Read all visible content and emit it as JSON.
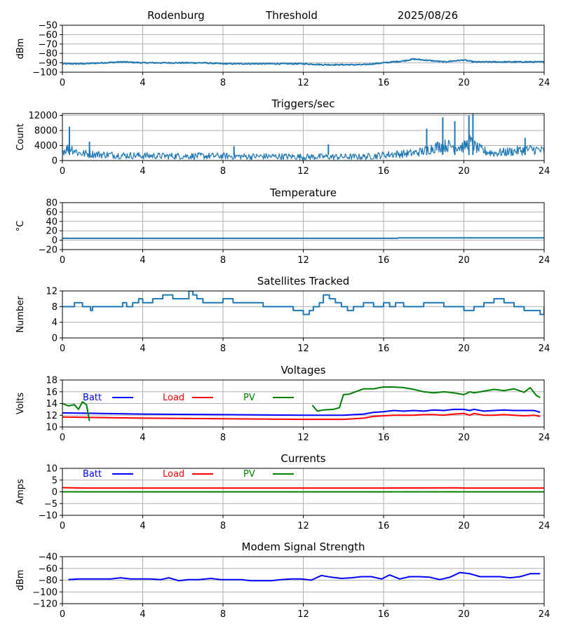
{
  "header": {
    "station": "Rodenburg",
    "mode": "Threshold",
    "date": "2025/08/26"
  },
  "colors": {
    "default": "#1f77b4",
    "batt": "#0000ff",
    "load": "#ff0000",
    "pv": "#008000",
    "grid": "#b0b0b0"
  },
  "chart_data": [
    {
      "id": "signal",
      "type": "line",
      "title": "",
      "ylabel": "dBm",
      "ylim": [
        -100,
        -50
      ],
      "yticks": [
        -100,
        -90,
        -80,
        -70,
        -60,
        -50
      ],
      "xlim": [
        0,
        24
      ],
      "xticks": [
        0,
        4,
        8,
        12,
        16,
        20,
        24
      ],
      "grid": true,
      "series": [
        {
          "color": "default",
          "noisy": true,
          "noise": 0.6,
          "x": [
            0,
            1,
            2,
            3,
            4,
            5,
            6,
            7,
            8,
            9,
            10,
            11,
            12,
            13,
            14,
            15,
            15.5,
            16,
            16.5,
            17,
            17.5,
            18,
            18.5,
            19,
            19.5,
            20,
            20.5,
            21,
            22,
            23,
            24
          ],
          "y": [
            -91,
            -91,
            -90,
            -89,
            -90,
            -90,
            -90,
            -90,
            -91,
            -91,
            -91,
            -91,
            -91,
            -92,
            -92,
            -92,
            -91,
            -90,
            -89,
            -88,
            -86,
            -87,
            -88,
            -89,
            -88,
            -87,
            -89,
            -89,
            -89,
            -89,
            -89
          ]
        }
      ]
    },
    {
      "id": "triggers",
      "type": "line",
      "title": "Triggers/sec",
      "ylabel": "Count",
      "ylim": [
        0,
        12500
      ],
      "yticks": [
        0,
        4000,
        8000,
        12000
      ],
      "xlim": [
        0,
        24
      ],
      "xticks": [
        0,
        4,
        8,
        12,
        16,
        20,
        24
      ],
      "grid": true,
      "series": [
        {
          "color": "default",
          "noisy": true,
          "noise": 900,
          "x": [
            0,
            0.4,
            0.8,
            1.2,
            2,
            3,
            4,
            5,
            6,
            7,
            8,
            9,
            10,
            11,
            12,
            13,
            14,
            15,
            15.5,
            16,
            16.5,
            17,
            17.5,
            18,
            18.5,
            19,
            19.5,
            20,
            20.3,
            20.6,
            21,
            21.5,
            22,
            22.5,
            23,
            23.5,
            24
          ],
          "y": [
            2500,
            3500,
            2000,
            1800,
            1600,
            1400,
            1300,
            1200,
            1200,
            1200,
            1200,
            1100,
            1100,
            1100,
            1000,
            1000,
            1000,
            1000,
            1200,
            1500,
            1700,
            1800,
            2000,
            2500,
            3500,
            4000,
            3800,
            3600,
            5000,
            3500,
            2500,
            2000,
            2200,
            2500,
            2800,
            3000,
            2500
          ]
        },
        {
          "color": "default",
          "noisy": false,
          "x": [
            0.3,
            0.35,
            0.4,
            1.3,
            1.35,
            1.4,
            8.5,
            8.55,
            8.6,
            13.2,
            13.25,
            13.3,
            18.1,
            18.15,
            18.2,
            18.9,
            18.95,
            19.0,
            19.5,
            19.55,
            19.6,
            20.2,
            20.25,
            20.3,
            20.4,
            20.45,
            20.5,
            23.0,
            23.05,
            23.1
          ],
          "y": [
            null,
            9000,
            null,
            null,
            5000,
            null,
            null,
            3800,
            null,
            null,
            4300,
            null,
            null,
            8500,
            null,
            null,
            11500,
            null,
            null,
            10500,
            null,
            null,
            12000,
            null,
            null,
            12400,
            null,
            null,
            6000,
            null
          ]
        }
      ]
    },
    {
      "id": "temperature",
      "type": "line",
      "title": "Temperature",
      "ylabel": "°C",
      "ylim": [
        -20,
        80
      ],
      "yticks": [
        -20,
        0,
        20,
        40,
        60,
        80
      ],
      "xlim": [
        0,
        24
      ],
      "xticks": [
        0,
        4,
        8,
        12,
        16,
        20,
        24
      ],
      "grid": true,
      "series": [
        {
          "color": "default",
          "noisy": false,
          "x": [
            0,
            16.7,
            16.75,
            24
          ],
          "y": [
            4,
            4,
            5,
            5
          ]
        }
      ]
    },
    {
      "id": "satellites",
      "type": "line",
      "title": "Satellites Tracked",
      "ylabel": "Number",
      "ylim": [
        0,
        12
      ],
      "yticks": [
        0,
        4,
        8,
        12
      ],
      "xlim": [
        0,
        24
      ],
      "xticks": [
        0,
        4,
        8,
        12,
        16,
        20,
        24
      ],
      "grid": true,
      "series": [
        {
          "color": "default",
          "noisy": false,
          "step": true,
          "x": [
            0,
            0.6,
            0.8,
            1,
            1.3,
            1.4,
            1.5,
            2.5,
            3,
            3.2,
            3.5,
            3.8,
            4,
            4.5,
            5,
            5.5,
            6,
            6.3,
            6.5,
            6.7,
            7,
            7.5,
            8,
            8.5,
            9,
            10,
            11,
            11.5,
            12,
            12.3,
            12.5,
            12.8,
            13,
            13.3,
            13.6,
            13.9,
            14.2,
            14.5,
            15,
            15.5,
            16,
            16.3,
            16.6,
            17,
            17.5,
            18,
            18.5,
            19,
            19.5,
            20,
            20.5,
            21,
            21.5,
            22,
            22.5,
            23,
            23.5,
            23.8,
            24
          ],
          "y": [
            8,
            9,
            9,
            8,
            8,
            7,
            8,
            8,
            9,
            8,
            9,
            10,
            9,
            10,
            11,
            10,
            10,
            12,
            11,
            10,
            9,
            9,
            10,
            9,
            9,
            8,
            8,
            7,
            6,
            7,
            8,
            9,
            11,
            10,
            9,
            8,
            7,
            8,
            9,
            8,
            9,
            8,
            9,
            8,
            8,
            9,
            9,
            8,
            8,
            7,
            8,
            9,
            10,
            9,
            8,
            7,
            7,
            6,
            8
          ]
        }
      ]
    },
    {
      "id": "voltages",
      "type": "line",
      "title": "Voltages",
      "ylabel": "Volts",
      "ylim": [
        10,
        18
      ],
      "yticks": [
        10,
        12,
        14,
        16,
        18
      ],
      "xlim": [
        0,
        24
      ],
      "xticks": [
        0,
        4,
        8,
        12,
        16,
        20,
        24
      ],
      "grid": true,
      "legend": [
        "Batt",
        "Load",
        "PV"
      ],
      "series": [
        {
          "name": "Batt",
          "color": "batt",
          "noisy": false,
          "x": [
            0,
            2,
            4,
            8,
            12,
            14,
            15,
            15.5,
            16,
            16.5,
            17,
            17.5,
            18,
            18.5,
            19,
            19.5,
            20,
            20.3,
            20.5,
            21,
            21.5,
            22,
            22.5,
            23,
            23.5,
            23.8
          ],
          "y": [
            12.4,
            12.3,
            12.2,
            12.1,
            12.0,
            12.0,
            12.2,
            12.5,
            12.6,
            12.8,
            12.7,
            12.8,
            12.7,
            12.9,
            12.8,
            13.0,
            13.0,
            12.8,
            13.0,
            12.7,
            12.8,
            12.9,
            12.8,
            12.8,
            12.8,
            12.5
          ]
        },
        {
          "name": "Load",
          "color": "load",
          "noisy": false,
          "x": [
            0,
            2,
            4,
            8,
            12,
            14,
            15,
            15.5,
            16,
            16.5,
            17,
            17.5,
            18,
            18.5,
            19,
            19.5,
            20,
            20.3,
            20.5,
            21,
            21.5,
            22,
            22.5,
            23,
            23.5,
            23.8
          ],
          "y": [
            11.7,
            11.6,
            11.5,
            11.4,
            11.3,
            11.3,
            11.5,
            11.8,
            11.9,
            12.0,
            12.0,
            12.0,
            12.1,
            12.1,
            12.0,
            12.2,
            12.3,
            12.0,
            12.3,
            12.0,
            12.0,
            12.1,
            12.0,
            11.9,
            12.0,
            11.8
          ]
        },
        {
          "name": "PV",
          "color": "pv",
          "noisy": false,
          "x": [
            0,
            0.3,
            0.6,
            0.8,
            1.0,
            1.2,
            1.35,
            1.4,
            12.4,
            12.45,
            12.7,
            13.0,
            13.5,
            13.8,
            14.0,
            14.3,
            14.6,
            15.0,
            15.5,
            15.8,
            16,
            16.5,
            17,
            17.5,
            18,
            18.5,
            19,
            19.5,
            20,
            20.3,
            20.5,
            21,
            21.5,
            22,
            22.5,
            23,
            23.3,
            23.6,
            23.8
          ],
          "y": [
            14.0,
            13.6,
            13.8,
            13.0,
            14.3,
            13.8,
            11.0,
            null,
            null,
            13.7,
            12.7,
            12.9,
            13.0,
            13.3,
            15.5,
            15.6,
            16.0,
            16.5,
            16.5,
            16.7,
            16.8,
            16.8,
            16.7,
            16.4,
            16.0,
            15.8,
            16.0,
            15.8,
            15.5,
            16.0,
            15.8,
            16.1,
            16.4,
            16.2,
            16.5,
            15.9,
            16.7,
            15.4,
            15.0
          ]
        }
      ]
    },
    {
      "id": "currents",
      "type": "line",
      "title": "Currents",
      "ylabel": "Amps",
      "ylim": [
        -10,
        10
      ],
      "yticks": [
        -10,
        -5,
        0,
        5,
        10
      ],
      "xlim": [
        0,
        24
      ],
      "xticks": [
        0,
        4,
        8,
        12,
        16,
        20,
        24
      ],
      "grid": true,
      "legend": [
        "Batt",
        "Load",
        "PV"
      ],
      "series": [
        {
          "name": "Batt",
          "color": "batt",
          "noisy": false,
          "x": [
            0,
            24
          ],
          "y": [
            0,
            0
          ]
        },
        {
          "name": "PV",
          "color": "pv",
          "noisy": false,
          "x": [
            0,
            24
          ],
          "y": [
            0,
            0
          ]
        },
        {
          "name": "Load",
          "color": "load",
          "noisy": false,
          "x": [
            0,
            1,
            2,
            4,
            8,
            12,
            16,
            19.5,
            20,
            24
          ],
          "y": [
            1.8,
            1.6,
            1.6,
            1.6,
            1.6,
            1.6,
            1.6,
            1.7,
            1.6,
            1.6
          ]
        }
      ]
    },
    {
      "id": "modem",
      "type": "line",
      "title": "Modem Signal Strength",
      "ylabel": "dBm",
      "ylim": [
        -120,
        -40
      ],
      "yticks": [
        -120,
        -100,
        -80,
        -60,
        -40
      ],
      "xlim": [
        0,
        24
      ],
      "xticks": [
        0,
        4,
        8,
        12,
        16,
        20,
        24
      ],
      "grid": true,
      "series": [
        {
          "color": "batt",
          "noisy": false,
          "x": [
            0.3,
            0.8,
            1.3,
            1.8,
            2.4,
            2.9,
            3.4,
            3.9,
            4.4,
            4.9,
            5.3,
            5.8,
            6.3,
            6.8,
            7.4,
            7.9,
            8.4,
            8.9,
            9.4,
            9.9,
            10.4,
            10.9,
            11.4,
            11.9,
            12.4,
            12.9,
            13.4,
            13.9,
            14.4,
            14.9,
            15.4,
            15.9,
            16.3,
            16.8,
            17.3,
            17.8,
            18.3,
            18.8,
            19.3,
            19.8,
            20.3,
            20.8,
            21.3,
            21.8,
            22.3,
            22.8,
            23.3,
            23.8
          ],
          "y": [
            -79,
            -78,
            -78,
            -78,
            -78,
            -76,
            -78,
            -78,
            -78,
            -79,
            -76,
            -81,
            -79,
            -79,
            -77,
            -79,
            -79,
            -79,
            -81,
            -81,
            -81,
            -79,
            -78,
            -78,
            -80,
            -72,
            -75,
            -77,
            -76,
            -74,
            -74,
            -78,
            -71,
            -78,
            -74,
            -74,
            -75,
            -79,
            -75,
            -67,
            -69,
            -74,
            -74,
            -74,
            -76,
            -74,
            -69,
            -69
          ]
        }
      ]
    }
  ]
}
